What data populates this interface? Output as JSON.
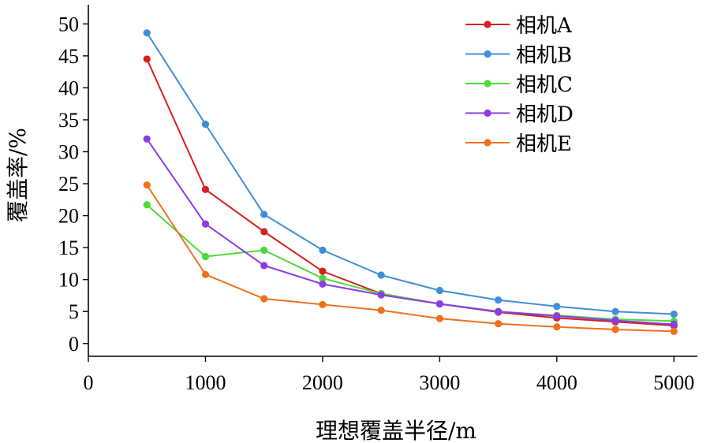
{
  "chart_data": {
    "type": "line",
    "x": [
      500,
      1000,
      1500,
      2000,
      2500,
      3000,
      3500,
      4000,
      4500,
      5000
    ],
    "xlabel": "理想覆盖半径/m",
    "ylabel": "覆盖率/%",
    "xlim": [
      0,
      5200
    ],
    "ylim": [
      -2,
      53
    ],
    "xticks": [
      0,
      1000,
      2000,
      3000,
      4000,
      5000
    ],
    "yticks": [
      0,
      5,
      10,
      15,
      20,
      25,
      30,
      35,
      40,
      45,
      50
    ],
    "grid": false,
    "legend_position": "top-right",
    "series": [
      {
        "name": "相机A",
        "color": "#d62020",
        "values": [
          44.5,
          24.1,
          17.5,
          11.3,
          7.8,
          6.2,
          4.9,
          4.0,
          3.4,
          2.8
        ]
      },
      {
        "name": "相机B",
        "color": "#3f8fd8",
        "values": [
          48.6,
          34.3,
          20.2,
          14.6,
          10.7,
          8.3,
          6.8,
          5.8,
          5.0,
          4.6
        ]
      },
      {
        "name": "相机C",
        "color": "#4fd83a",
        "values": [
          21.7,
          13.6,
          14.6,
          10.2,
          7.8,
          6.2,
          5.0,
          4.4,
          3.8,
          3.5
        ]
      },
      {
        "name": "相机D",
        "color": "#8a3ce8",
        "values": [
          32.0,
          18.7,
          12.2,
          9.3,
          7.6,
          6.2,
          5.0,
          4.3,
          3.6,
          3.0
        ]
      },
      {
        "name": "相机E",
        "color": "#f0701e",
        "values": [
          24.8,
          10.8,
          7.0,
          6.1,
          5.2,
          3.9,
          3.1,
          2.6,
          2.2,
          1.9
        ]
      }
    ]
  }
}
